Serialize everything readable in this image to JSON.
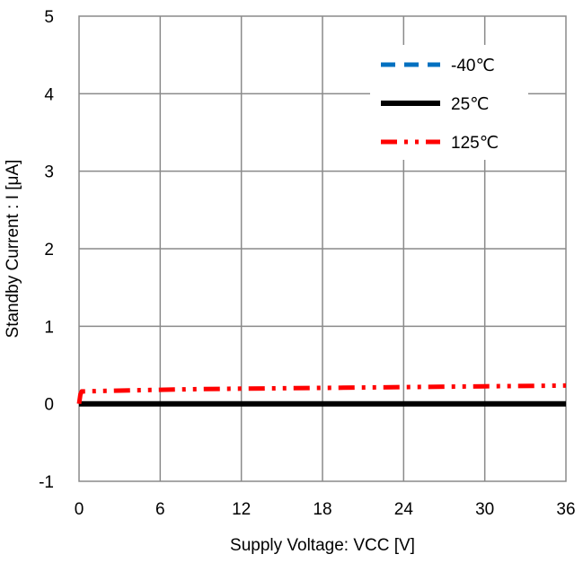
{
  "chart_data": {
    "type": "line",
    "title": "",
    "xlabel": "Supply Voltage: VCC  [V]",
    "ylabel": "Standby Current : I  [μA]",
    "xlim": [
      0,
      36
    ],
    "ylim": [
      -1,
      5
    ],
    "xticks": [
      0,
      6,
      12,
      18,
      24,
      30,
      36
    ],
    "yticks": [
      -1,
      0,
      1,
      2,
      3,
      4,
      5
    ],
    "grid": true,
    "legend_position": "top-right",
    "series": [
      {
        "name": "-40℃",
        "color": "#0070C0",
        "style": "dashed",
        "x": [
          0,
          36
        ],
        "y": [
          0,
          0
        ]
      },
      {
        "name": "25℃",
        "color": "#000000",
        "style": "solid",
        "x": [
          0,
          36
        ],
        "y": [
          0,
          0
        ]
      },
      {
        "name": "125℃",
        "color": "#FF0000",
        "style": "dash-dot",
        "x": [
          0,
          0.1,
          0.2,
          3,
          6,
          9,
          12,
          18,
          24,
          30,
          36
        ],
        "y": [
          0,
          0.12,
          0.16,
          0.17,
          0.18,
          0.19,
          0.195,
          0.205,
          0.215,
          0.225,
          0.235
        ]
      }
    ]
  }
}
